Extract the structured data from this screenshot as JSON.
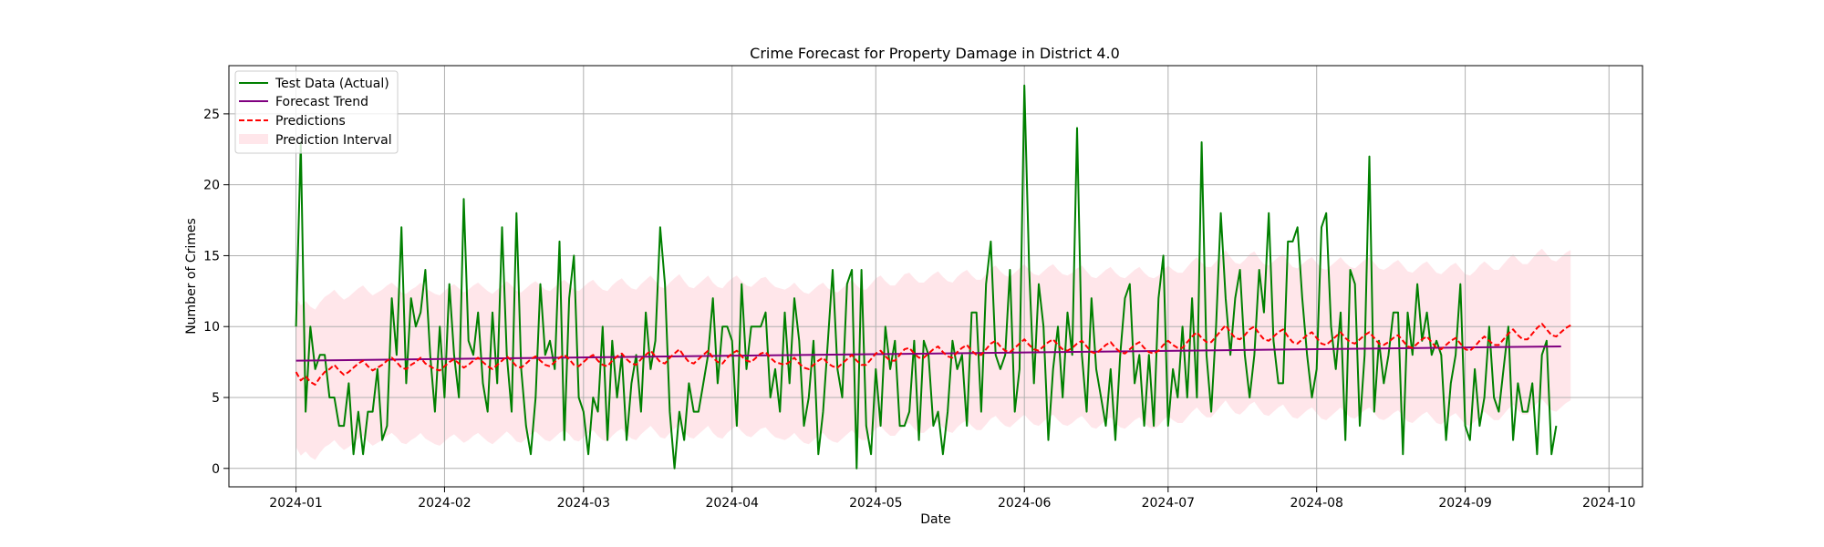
{
  "chart_data": {
    "type": "line",
    "title": "Crime Forecast for Property Damage in District 4.0",
    "xlabel": "Date",
    "ylabel": "Number of Crimes",
    "x_range": [
      "2023-12-18",
      "2024-10-08"
    ],
    "xlim": [
      "2023-12-18",
      "2024-10-08"
    ],
    "ylim": [
      -1.3,
      28.4
    ],
    "x_ticks": [
      "2024-01-01",
      "2024-02-01",
      "2024-03-01",
      "2024-04-01",
      "2024-05-01",
      "2024-06-01",
      "2024-07-01",
      "2024-08-01",
      "2024-09-01",
      "2024-10-01"
    ],
    "x_tick_labels": [
      "2024-01",
      "2024-02",
      "2024-03",
      "2024-04",
      "2024-05",
      "2024-06",
      "2024-07",
      "2024-08",
      "2024-09",
      "2024-10"
    ],
    "y_ticks": [
      0,
      5,
      10,
      15,
      20,
      25
    ],
    "y_tick_labels": [
      "0",
      "5",
      "10",
      "15",
      "20",
      "25"
    ],
    "grid": true,
    "legend_position": "top-left",
    "series": [
      {
        "name": "Test Data (Actual)",
        "kind": "line",
        "color": "#008000",
        "x_start": "2024-01-01",
        "x_step_days": 1,
        "values": [
          10,
          23,
          4,
          10,
          7,
          8,
          8,
          5,
          5,
          3,
          3,
          6,
          1,
          4,
          1,
          4,
          4,
          7,
          2,
          3,
          12,
          8,
          17,
          6,
          12,
          10,
          11,
          14,
          8,
          4,
          10,
          5,
          13,
          8,
          5,
          19,
          9,
          8,
          11,
          6,
          4,
          11,
          6,
          17,
          8,
          4,
          18,
          7,
          3,
          1,
          5,
          13,
          8,
          9,
          7,
          16,
          2,
          12,
          15,
          5,
          4,
          1,
          5,
          4,
          10,
          2,
          9,
          5,
          8,
          2,
          6,
          8,
          4,
          11,
          7,
          9,
          17,
          13,
          4,
          0,
          4,
          2,
          6,
          4,
          4,
          6,
          8,
          12,
          6,
          10,
          10,
          9,
          3,
          13,
          7,
          10,
          10,
          10,
          11,
          5,
          7,
          4,
          11,
          6,
          12,
          9,
          3,
          5,
          9,
          1,
          4,
          9,
          14,
          7,
          5,
          13,
          14,
          0,
          14,
          3,
          1,
          7,
          3,
          10,
          7,
          9,
          3,
          3,
          4,
          9,
          2,
          9,
          8,
          3,
          4,
          1,
          4,
          9,
          7,
          8,
          3,
          11,
          11,
          4,
          13,
          16,
          8,
          7,
          8,
          14,
          4,
          7,
          27,
          14,
          6,
          13,
          10,
          2,
          7,
          10,
          5,
          11,
          8,
          24,
          8,
          4,
          12,
          7,
          5,
          3,
          7,
          2,
          8,
          12,
          13,
          6,
          8,
          3,
          8,
          3,
          12,
          15,
          3,
          7,
          5,
          10,
          5,
          12,
          5,
          23,
          8,
          4,
          10,
          18,
          12,
          8,
          12,
          14,
          8,
          5,
          8,
          14,
          11,
          18,
          9,
          6,
          6,
          16,
          16,
          17,
          12,
          8,
          5,
          7,
          17,
          18,
          10,
          7,
          11,
          2,
          14,
          13,
          3,
          8,
          22,
          4,
          9,
          6,
          8,
          11,
          11,
          1,
          11,
          8,
          13,
          9,
          11,
          8,
          9,
          8,
          2,
          6,
          8,
          13,
          3,
          2,
          7,
          3,
          5,
          10,
          5,
          4,
          7,
          10,
          2,
          6,
          4,
          4,
          6,
          1,
          8,
          9,
          1,
          3
        ]
      },
      {
        "name": "Forecast Trend",
        "kind": "line",
        "color": "#800080",
        "x": [
          "2024-01-01",
          "2024-09-21"
        ],
        "values": [
          7.6,
          8.6
        ]
      },
      {
        "name": "Predictions",
        "kind": "dashed-line",
        "color": "#ff0000",
        "x_start": "2024-01-01",
        "x_step_days": 1,
        "values": [
          6.8,
          6.2,
          6.5,
          6.1,
          5.9,
          6.4,
          6.8,
          7.0,
          7.3,
          6.9,
          6.6,
          6.8,
          7.1,
          7.4,
          7.6,
          7.2,
          6.9,
          7.1,
          7.3,
          7.6,
          7.8,
          7.5,
          7.1,
          7.0,
          7.3,
          7.5,
          7.8,
          7.4,
          7.2,
          7.0,
          6.9,
          7.2,
          7.5,
          7.7,
          7.4,
          7.1,
          7.3,
          7.6,
          7.8,
          7.5,
          7.2,
          7.0,
          7.3,
          7.6,
          7.9,
          7.6,
          7.2,
          7.1,
          7.4,
          7.7,
          7.9,
          7.6,
          7.3,
          7.2,
          7.5,
          7.8,
          8.0,
          7.7,
          7.3,
          7.2,
          7.5,
          7.8,
          8.0,
          7.6,
          7.3,
          7.2,
          7.6,
          7.9,
          8.1,
          7.7,
          7.4,
          7.3,
          7.7,
          8.0,
          8.3,
          7.9,
          7.5,
          7.4,
          7.8,
          8.1,
          8.4,
          7.9,
          7.5,
          7.4,
          7.7,
          8.0,
          8.3,
          7.8,
          7.5,
          7.4,
          7.8,
          8.1,
          8.3,
          7.9,
          7.6,
          7.5,
          7.8,
          8.1,
          8.2,
          7.8,
          7.5,
          7.4,
          7.3,
          7.5,
          7.8,
          7.4,
          7.1,
          7.0,
          7.3,
          7.6,
          7.8,
          7.4,
          7.2,
          7.1,
          7.4,
          7.7,
          8.0,
          7.6,
          7.3,
          7.3,
          7.7,
          8.1,
          8.3,
          7.9,
          7.6,
          7.6,
          8.0,
          8.4,
          8.5,
          8.1,
          7.8,
          7.8,
          8.1,
          8.4,
          8.6,
          8.2,
          7.9,
          7.8,
          8.2,
          8.5,
          8.7,
          8.3,
          8.0,
          8.0,
          8.4,
          8.8,
          9.0,
          8.6,
          8.3,
          8.2,
          8.5,
          8.8,
          9.1,
          8.7,
          8.4,
          8.3,
          8.6,
          8.9,
          9.1,
          8.7,
          8.4,
          8.3,
          8.5,
          8.8,
          9.0,
          8.6,
          8.2,
          8.1,
          8.4,
          8.7,
          8.9,
          8.5,
          8.2,
          8.1,
          8.4,
          8.7,
          8.9,
          8.5,
          8.2,
          8.1,
          8.3,
          8.7,
          9.0,
          8.7,
          8.5,
          8.5,
          8.9,
          9.3,
          9.6,
          9.2,
          8.9,
          8.9,
          9.3,
          9.7,
          10.1,
          9.6,
          9.2,
          9.1,
          9.4,
          9.8,
          10.0,
          9.5,
          9.1,
          9.0,
          9.3,
          9.6,
          9.8,
          9.3,
          8.9,
          8.8,
          9.1,
          9.4,
          9.6,
          9.2,
          8.8,
          8.7,
          9.0,
          9.3,
          9.6,
          9.2,
          8.9,
          8.8,
          9.1,
          9.4,
          9.6,
          9.2,
          8.8,
          8.7,
          8.9,
          9.2,
          9.4,
          9.0,
          8.6,
          8.5,
          8.8,
          9.1,
          9.3,
          8.9,
          8.5,
          8.4,
          8.7,
          9.0,
          9.2,
          8.8,
          8.4,
          8.3,
          8.6,
          9.0,
          9.3,
          9.0,
          8.7,
          8.7,
          9.1,
          9.5,
          9.8,
          9.4,
          9.1,
          9.1,
          9.5,
          9.9,
          10.2,
          9.8,
          9.4,
          9.3,
          9.6,
          9.9,
          10.1
        ]
      },
      {
        "name": "Prediction Interval",
        "kind": "band",
        "color": "#ffc0cb",
        "opacity": 0.4,
        "half_width": 5.3
      }
    ]
  }
}
